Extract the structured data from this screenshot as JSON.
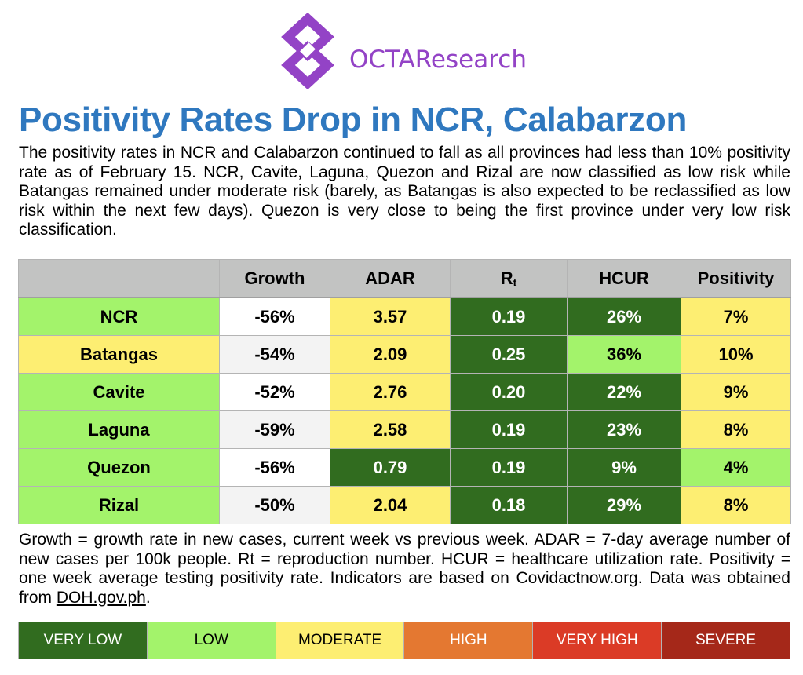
{
  "brand": {
    "name": "OCTAResearch",
    "color": "#9343c6",
    "icon": "octa-diamond-logo"
  },
  "title": "Positivity Rates Drop in NCR, Calabarzon",
  "intro": "The positivity rates in NCR and Calabarzon continued to fall as all provinces had less than 10% positivity rate as of February 15. NCR, Cavite, Laguna, Quezon and Rizal are now classified as low risk while Batangas remained under moderate risk (barely, as Batangas is also expected to be reclassified as low risk within the next few days). Quezon is very close to being the first province under very low risk classification.",
  "table": {
    "headers": {
      "blank": "",
      "growth": "Growth",
      "adar": "ADAR",
      "rt_main": "R",
      "rt_sub": "t",
      "hcur": "HCUR",
      "positivity": "Positivity"
    },
    "rows": [
      {
        "name": "NCR",
        "growth": "-56%",
        "adar": "3.57",
        "rt": "0.19",
        "hcur": "26%",
        "positivity": "7%",
        "risk": {
          "name": "low",
          "adar": "moderate",
          "rt": "very-low",
          "hcur": "very-low",
          "positivity": "moderate"
        }
      },
      {
        "name": "Batangas",
        "growth": "-54%",
        "adar": "2.09",
        "rt": "0.25",
        "hcur": "36%",
        "positivity": "10%",
        "risk": {
          "name": "moderate",
          "adar": "moderate",
          "rt": "very-low",
          "hcur": "low",
          "positivity": "moderate"
        }
      },
      {
        "name": "Cavite",
        "growth": "-52%",
        "adar": "2.76",
        "rt": "0.20",
        "hcur": "22%",
        "positivity": "9%",
        "risk": {
          "name": "low",
          "adar": "moderate",
          "rt": "very-low",
          "hcur": "very-low",
          "positivity": "moderate"
        }
      },
      {
        "name": "Laguna",
        "growth": "-59%",
        "adar": "2.58",
        "rt": "0.19",
        "hcur": "23%",
        "positivity": "8%",
        "risk": {
          "name": "low",
          "adar": "moderate",
          "rt": "very-low",
          "hcur": "very-low",
          "positivity": "moderate"
        }
      },
      {
        "name": "Quezon",
        "growth": "-56%",
        "adar": "0.79",
        "rt": "0.19",
        "hcur": "9%",
        "positivity": "4%",
        "risk": {
          "name": "low",
          "adar": "very-low",
          "rt": "very-low",
          "hcur": "very-low",
          "positivity": "low"
        }
      },
      {
        "name": "Rizal",
        "growth": "-50%",
        "adar": "2.04",
        "rt": "0.18",
        "hcur": "29%",
        "positivity": "8%",
        "risk": {
          "name": "low",
          "adar": "moderate",
          "rt": "very-low",
          "hcur": "very-low",
          "positivity": "moderate"
        }
      }
    ]
  },
  "footnote": {
    "text": "Growth = growth rate in new cases, current week vs previous week. ADAR = 7-day average number of new cases per 100k people. Rt = reproduction number. HCUR = healthcare utilization rate. Positivity = one week average testing positivity rate. Indicators are based on Covidactnow.org. Data was obtained from ",
    "link": "DOH.gov.ph",
    "end": "."
  },
  "legend": [
    {
      "label": "VERY LOW",
      "color": "#316c1f",
      "text_color": "#ffffff"
    },
    {
      "label": "LOW",
      "color": "#a3f36b",
      "text_color": "#000000"
    },
    {
      "label": "MODERATE",
      "color": "#fdee72",
      "text_color": "#000000"
    },
    {
      "label": "HIGH",
      "color": "#e47831",
      "text_color": "#ffffff"
    },
    {
      "label": "VERY HIGH",
      "color": "#db3b26",
      "text_color": "#ffffff"
    },
    {
      "label": "SEVERE",
      "color": "#a52819",
      "text_color": "#ffffff"
    }
  ]
}
